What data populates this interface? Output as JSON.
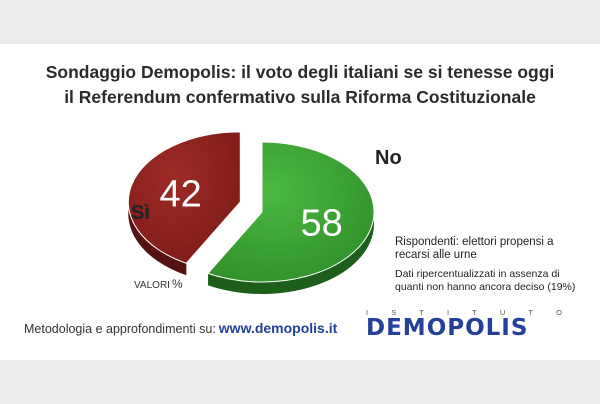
{
  "title": {
    "line1": "Sondaggio Demopolis: il voto degli italiani se si tenesse oggi",
    "line2": "il Referendum confermativo sulla Riforma Costituzionale"
  },
  "chart_data": {
    "type": "pie",
    "title": "Sondaggio Demopolis: il voto degli italiani se si tenesse oggi il Referendum confermativo sulla Riforma Costituzionale",
    "unit_label": "VALORI",
    "unit_symbol": "%",
    "slices": [
      {
        "label": "Sì",
        "value": 58,
        "color": "#2f8f2a"
      },
      {
        "label": "No",
        "value": 42,
        "color": "#7e1b18"
      }
    ]
  },
  "notes": {
    "respondents": "Rispondenti: elettori propensi a recarsi alle urne",
    "recalc": "Dati ripercentualizzati in assenza di quanti non hanno ancora deciso (19%)"
  },
  "footer": {
    "text": "Metodologia e approfondimenti su:",
    "url": "www.demopolis.it"
  },
  "logo": {
    "subtitle_letters": [
      "I",
      "S",
      "T",
      "I",
      "T",
      "U",
      "T",
      "O"
    ],
    "name": "DEMOPOLIS"
  }
}
